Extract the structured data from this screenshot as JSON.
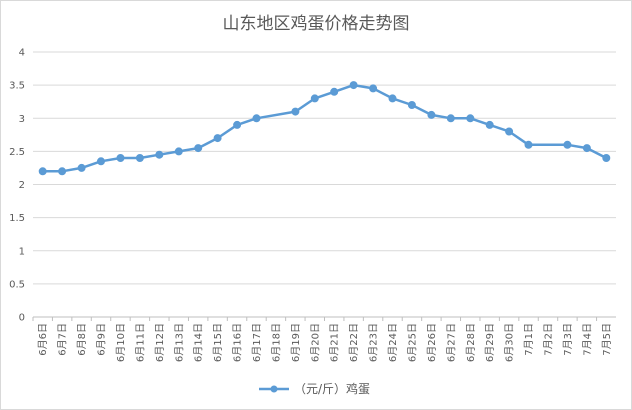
{
  "chart_data": {
    "type": "line",
    "title": "山东地区鸡蛋价格走势图",
    "xlabel": "",
    "ylabel": "",
    "ylim": [
      0,
      4
    ],
    "yticks": [
      "0",
      "0.5",
      "1",
      "1.5",
      "2",
      "2.5",
      "3",
      "3.5",
      "4"
    ],
    "grid": true,
    "legend_position": "bottom",
    "categories": [
      "6月6日",
      "6月7日",
      "6月8日",
      "6月9日",
      "6月10日",
      "6月11日",
      "6月12日",
      "6月13日",
      "6月14日",
      "6月15日",
      "6月16日",
      "6月17日",
      "6月18日",
      "6月19日",
      "6月20日",
      "6月21日",
      "6月22日",
      "6月23日",
      "6月24日",
      "6月25日",
      "6月26日",
      "6月27日",
      "6月28日",
      "6月29日",
      "6月30日",
      "7月1日",
      "7月2日",
      "7月3日",
      "7月4日",
      "7月5日"
    ],
    "series": [
      {
        "name": "（元/斤）鸡蛋",
        "color": "#5b9bd5",
        "values": [
          2.2,
          2.2,
          2.25,
          2.35,
          2.4,
          2.4,
          2.45,
          2.5,
          2.55,
          2.7,
          2.9,
          3.0,
          null,
          3.1,
          3.3,
          3.4,
          3.5,
          3.45,
          3.3,
          3.2,
          3.05,
          3.0,
          3.0,
          2.9,
          2.8,
          2.6,
          null,
          2.6,
          2.55,
          2.4
        ]
      }
    ]
  }
}
